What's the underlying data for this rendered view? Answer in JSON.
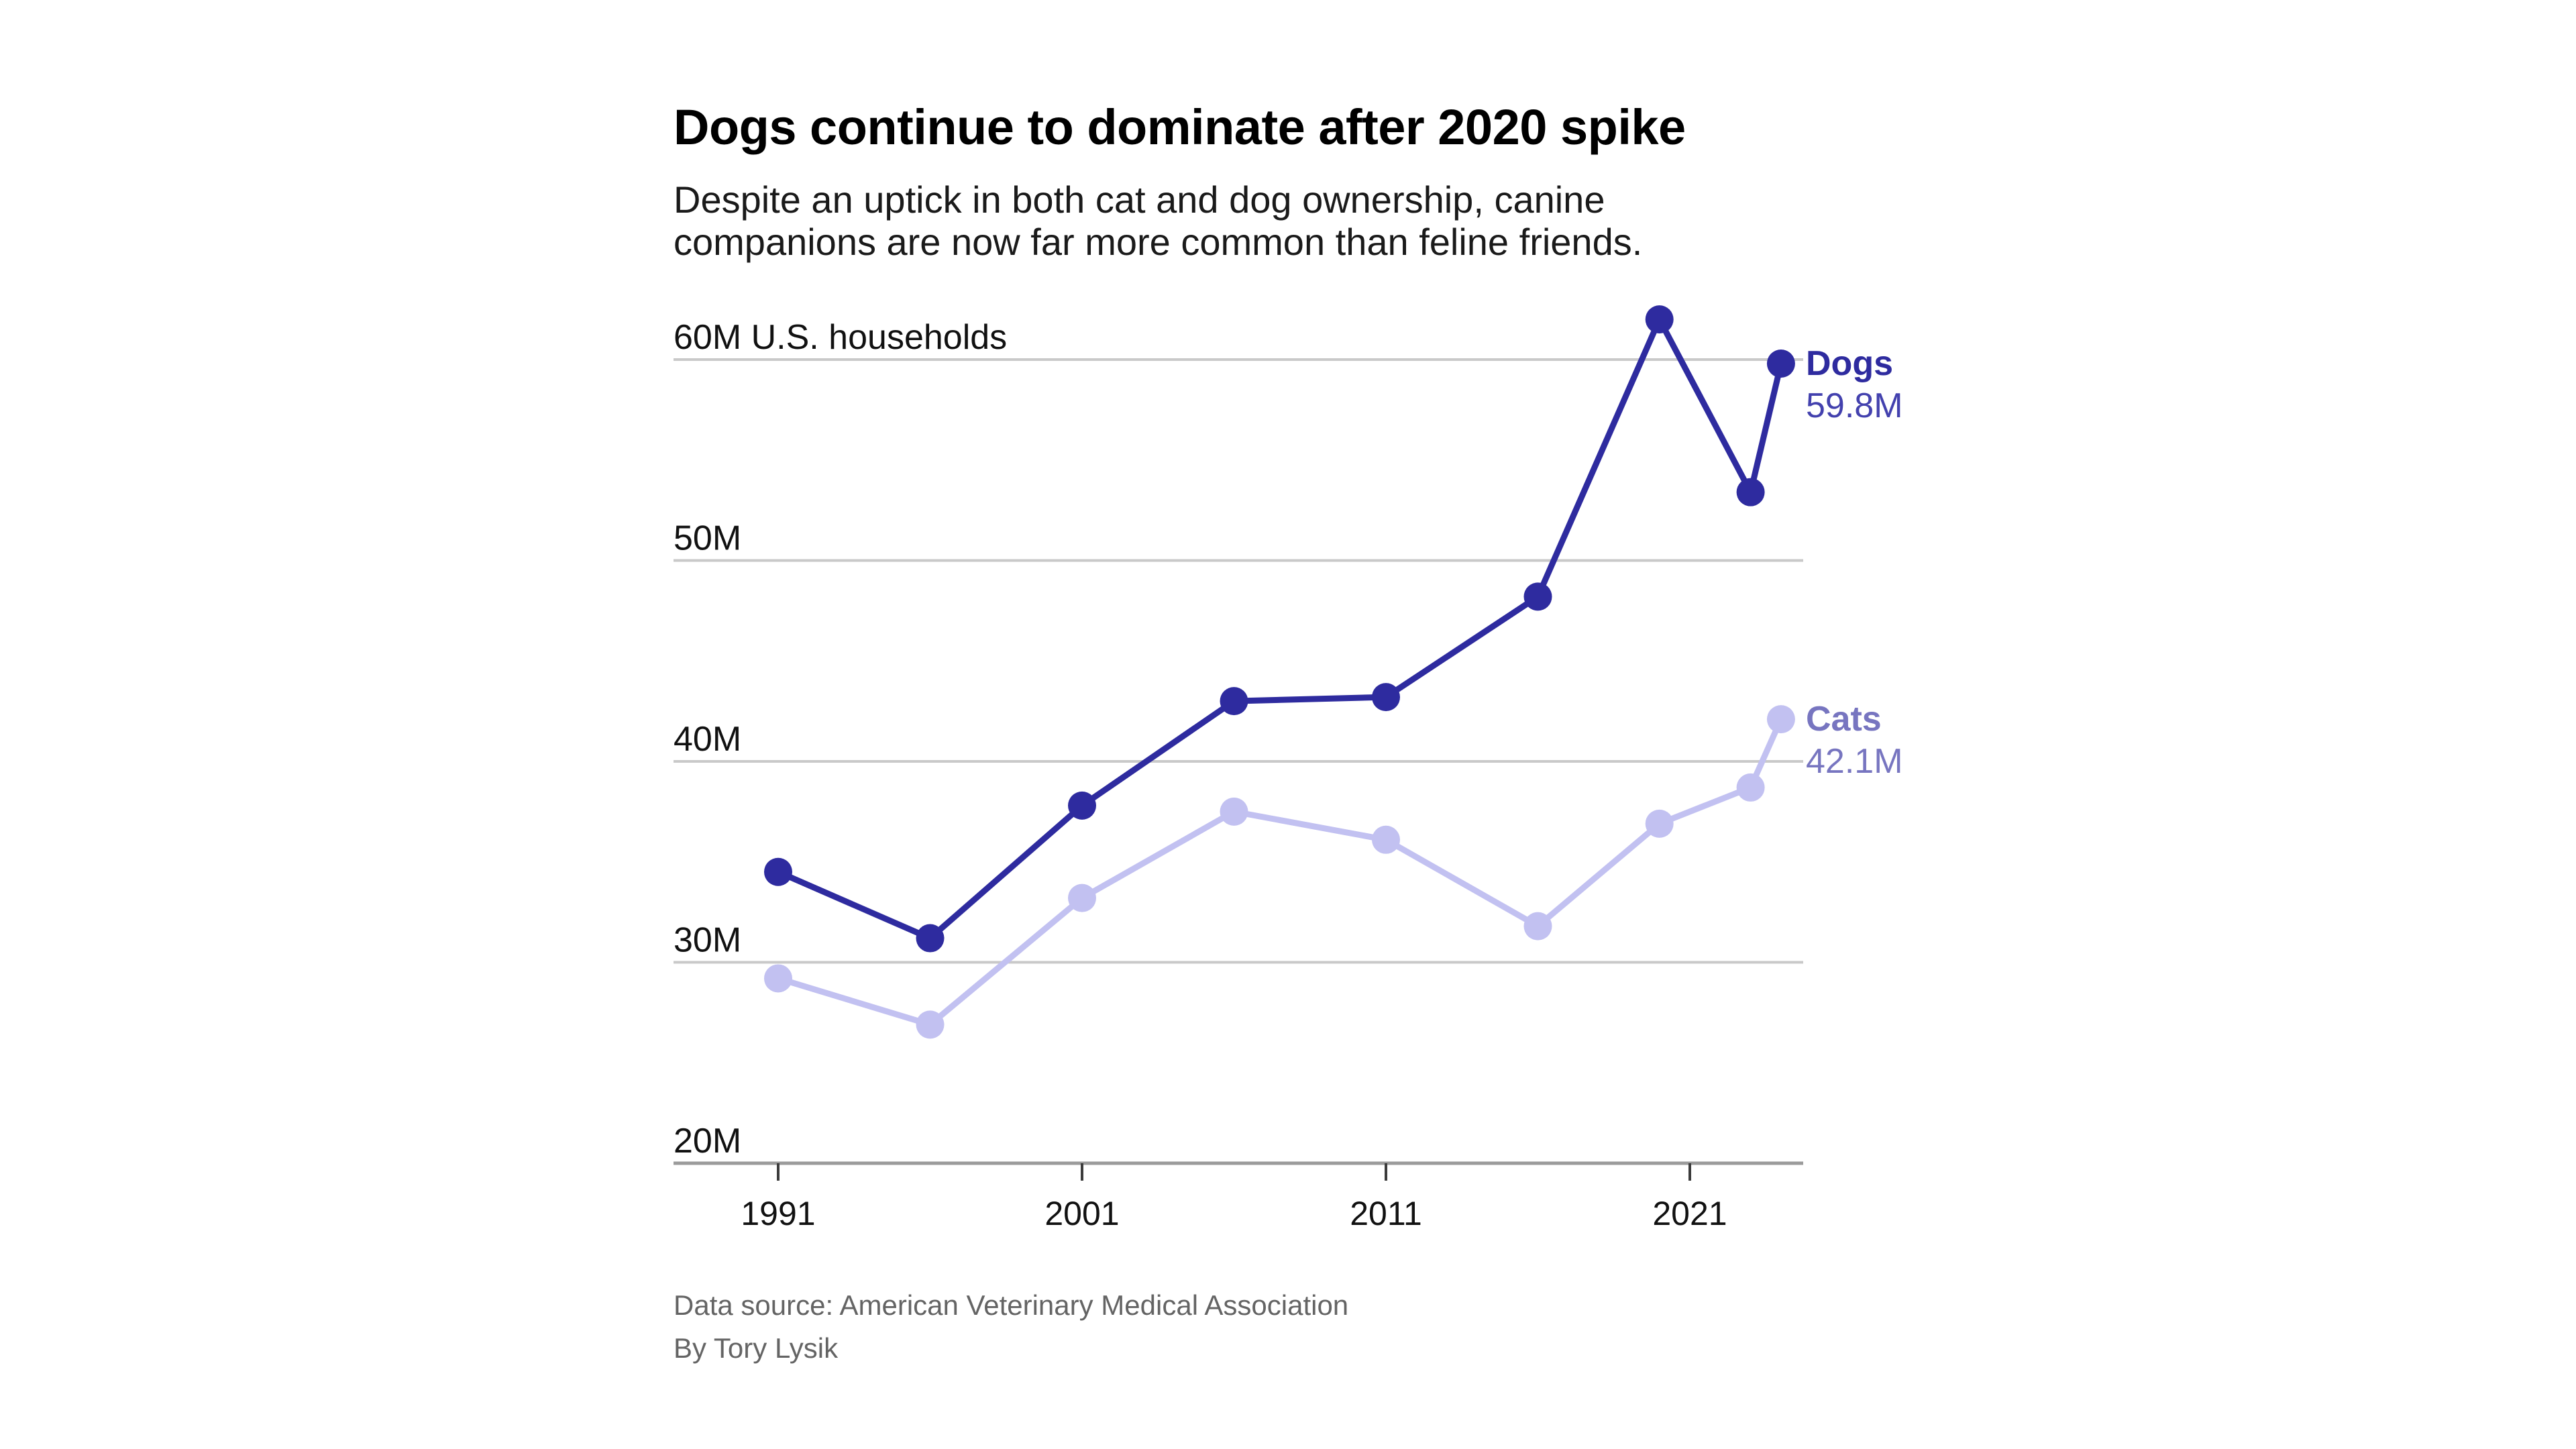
{
  "header": {
    "title": "Dogs continue to dominate after 2020 spike",
    "subtitle": "Despite an uptick in both cat and dog ownership, canine companions are now far more common than feline friends."
  },
  "footer": {
    "source_line": "Data source: American Veterinary Medical Association",
    "byline": "By Tory Lysik"
  },
  "colors": {
    "dogs_line": "#2e2b9f",
    "dogs_value_text": "#4341ae",
    "cats_line": "#c2c1f1",
    "cats_label_text": "#7775c0",
    "gridline": "#c9c9c9",
    "axis_line": "#9b9b9b",
    "tick_mark": "#3c3c3c",
    "axis_text": "#111111"
  },
  "chart_data": {
    "type": "line",
    "title": "Dogs continue to dominate after 2020 spike",
    "subtitle": "Despite an uptick in both cat and dog ownership, canine companions are now far more common than feline friends.",
    "unit": "millions of U.S. households",
    "x": [
      1991,
      1996,
      2001,
      2006,
      2011,
      2016,
      2020,
      2023,
      2024
    ],
    "series": [
      {
        "name": "Dogs",
        "values": [
          34.5,
          31.2,
          37.8,
          43.0,
          43.2,
          48.2,
          62.0,
          53.4,
          59.8
        ],
        "color": "#2e2b9f",
        "label_color": "#2e2b9f",
        "value_color": "#4341ae",
        "end_label": "Dogs",
        "end_value": "59.8M"
      },
      {
        "name": "Cats",
        "values": [
          29.2,
          26.9,
          33.2,
          37.5,
          36.1,
          31.8,
          36.9,
          38.7,
          42.1
        ],
        "color": "#c2c1f1",
        "label_color": "#7775c0",
        "value_color": "#7775c0",
        "end_label": "Cats",
        "end_value": "42.1M"
      }
    ],
    "y_axis": {
      "min": 20,
      "max": 63.5,
      "ticks": [
        {
          "value": 20,
          "label": "20M"
        },
        {
          "value": 30,
          "label": "30M"
        },
        {
          "value": 40,
          "label": "40M"
        },
        {
          "value": 50,
          "label": "50M"
        },
        {
          "value": 60,
          "label": "60M U.S. households"
        }
      ]
    },
    "x_axis": {
      "ticks": [
        {
          "value": 1991,
          "label": "1991"
        },
        {
          "value": 2001,
          "label": "2001"
        },
        {
          "value": 2011,
          "label": "2011"
        },
        {
          "value": 2021,
          "label": "2021"
        }
      ]
    },
    "grid": true,
    "legend_position": "right-of-last-point"
  }
}
